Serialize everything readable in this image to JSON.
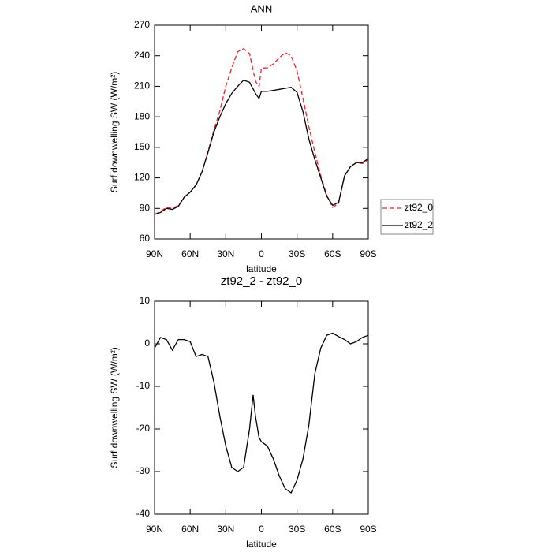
{
  "chart_data": [
    {
      "type": "line",
      "title": "ANN",
      "xlabel": "latitude",
      "ylabel": "Surf downwelling SW (W/m²)",
      "x": [
        90,
        85,
        80,
        75,
        70,
        65,
        60,
        55,
        50,
        45,
        40,
        35,
        30,
        25,
        20,
        15,
        10,
        5,
        2,
        0,
        -5,
        -10,
        -15,
        -20,
        -25,
        -30,
        -35,
        -40,
        -45,
        -50,
        -55,
        -60,
        -65,
        -70,
        -75,
        -80,
        -85,
        -90
      ],
      "series": [
        {
          "name": "zt92_0",
          "color": "#e8242c",
          "linestyle": "dashed",
          "values": [
            84,
            87,
            91,
            90,
            93,
            101,
            106,
            113,
            126,
            146,
            167,
            186,
            210,
            228,
            244,
            247,
            242,
            215,
            210,
            228,
            228,
            232,
            238,
            243,
            240,
            225,
            198,
            170,
            145,
            122,
            103,
            91,
            95,
            122,
            131,
            135,
            134,
            138
          ]
        },
        {
          "name": "zt92_2",
          "color": "#000000",
          "linestyle": "solid",
          "values": [
            84,
            86,
            90,
            89,
            92,
            101,
            106,
            113,
            126,
            145,
            165,
            180,
            193,
            203,
            210,
            216,
            214,
            203,
            198,
            205,
            205,
            206,
            207,
            208,
            209,
            204,
            185,
            158,
            138,
            120,
            102,
            93,
            96,
            122,
            131,
            135,
            135,
            139
          ]
        }
      ],
      "xlim": [
        90,
        -90
      ],
      "xticks": [
        {
          "value": 90,
          "label": "90N"
        },
        {
          "value": 60,
          "label": "60N"
        },
        {
          "value": 30,
          "label": "30N"
        },
        0,
        {
          "value": -30,
          "label": "30S"
        },
        {
          "value": -60,
          "label": "60S"
        },
        {
          "value": -90,
          "label": "90S"
        }
      ],
      "ylim": [
        60,
        270
      ],
      "yticks": [
        60,
        90,
        120,
        150,
        180,
        210,
        240,
        270
      ],
      "legend": "right"
    },
    {
      "type": "line",
      "title": "zt92_2 - zt92_0",
      "xlabel": "latitude",
      "ylabel": "Surf downwelling SW (W/m²)",
      "x": [
        90,
        85,
        80,
        75,
        70,
        65,
        60,
        55,
        50,
        45,
        40,
        35,
        30,
        25,
        20,
        15,
        10,
        7,
        5,
        2,
        0,
        -5,
        -10,
        -15,
        -20,
        -25,
        -30,
        -35,
        -40,
        -45,
        -50,
        -55,
        -60,
        -65,
        -70,
        -75,
        -80,
        -85,
        -90
      ],
      "series": [
        {
          "color": "#000000",
          "linestyle": "solid",
          "values": [
            -1,
            1.5,
            1,
            -1.5,
            1,
            1,
            0.5,
            -3,
            -2.5,
            -3,
            -9,
            -17,
            -24,
            -29,
            -30,
            -29,
            -20,
            -12,
            -17,
            -22,
            -23,
            -24,
            -27,
            -31,
            -34,
            -35,
            -32,
            -27,
            -19,
            -7,
            -1,
            2,
            2.5,
            1.7,
            1,
            0,
            0.5,
            1.5,
            2
          ]
        }
      ],
      "xlim": [
        90,
        -90
      ],
      "xticks": [
        {
          "value": 90,
          "label": "90N"
        },
        {
          "value": 60,
          "label": "60N"
        },
        {
          "value": 30,
          "label": "30N"
        },
        0,
        {
          "value": -30,
          "label": "30S"
        },
        {
          "value": -60,
          "label": "60S"
        },
        {
          "value": -90,
          "label": "90S"
        }
      ],
      "ylim": [
        -40,
        10
      ],
      "yticks": [
        -40,
        -30,
        -20,
        -10,
        0,
        10
      ]
    }
  ]
}
